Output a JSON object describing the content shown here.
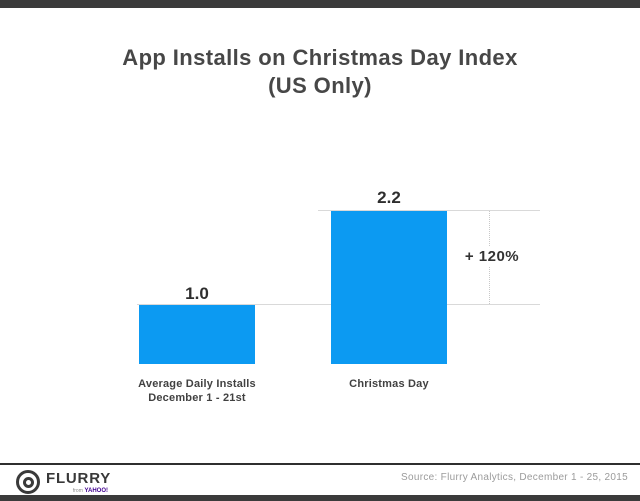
{
  "title": {
    "line1": "App Installs on Christmas Day Index",
    "line2": "(US Only)"
  },
  "chart": {
    "bars": [
      {
        "value_label": "1.0",
        "category_line1": "Average Daily Installs",
        "category_line2": "December 1 - 21st"
      },
      {
        "value_label": "2.2",
        "category_line1": "Christmas Day",
        "category_line2": ""
      }
    ],
    "annotation": "+ 120%",
    "bar_color": "#0c9af2",
    "gridline_color": "#d9d9d9"
  },
  "chart_data": {
    "type": "bar",
    "categories": [
      "Average Daily Installs December 1 - 21st",
      "Christmas Day"
    ],
    "values": [
      1.0,
      2.2
    ],
    "value_labels": [
      "1.0",
      "2.2"
    ],
    "title": "App Installs on Christmas Day Index (US Only)",
    "xlabel": "",
    "ylabel": "",
    "ylim": [
      0,
      2.5
    ],
    "grid": "guide lines at bar tops only, no axes",
    "legend": false,
    "bar_color": "#0c9af2",
    "annotations": [
      {
        "text": "+ 120%",
        "meaning": "percent change from Average Daily Installs (1.0) to Christmas Day (2.2)"
      }
    ]
  },
  "footer": {
    "brand": "FLURRY",
    "brand_sub_prefix": "from",
    "brand_sub": "YAHOO!",
    "source": "Source: Flurry Analytics, December 1 - 25, 2015"
  },
  "colors": {
    "accent_strip": "#3b3b3b",
    "bar_blue": "#0c9af2",
    "title_gray": "#474747",
    "source_gray": "#9b9b9b",
    "yahoo_purple": "#400090"
  }
}
